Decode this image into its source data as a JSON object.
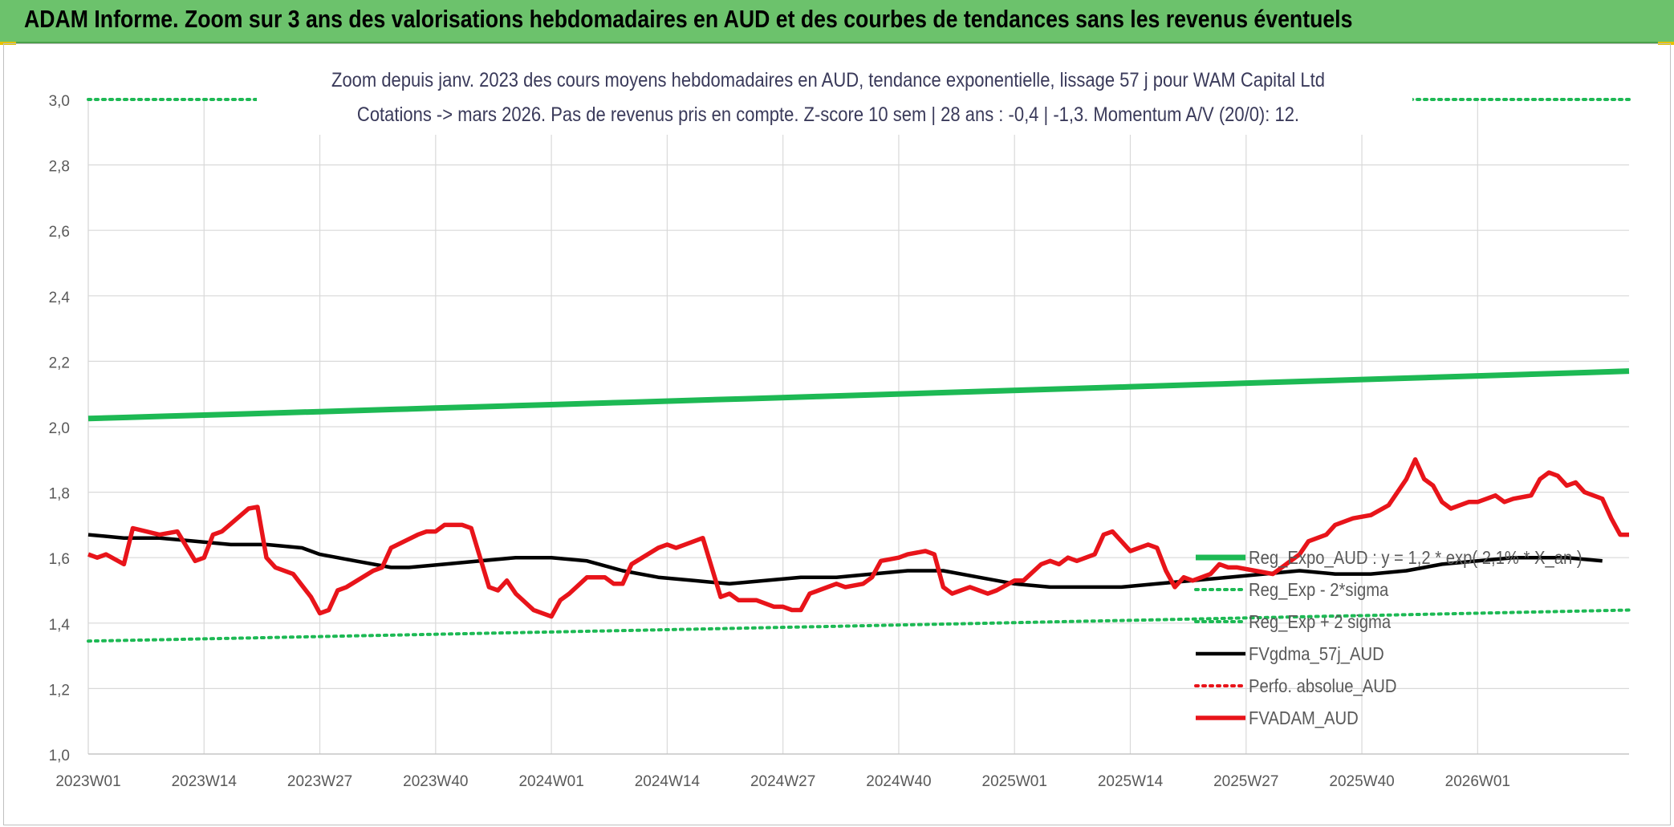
{
  "banner": {
    "title": "ADAM Informe. Zoom sur 3 ans des valorisations hebdomadaires en AUD et des courbes de tendances sans les revenus éventuels"
  },
  "chart_data": {
    "type": "line",
    "title_line1": "Zoom depuis janv. 2023 des cours moyens hebdomadaires en AUD, tendance exponentielle, lissage 57 j pour WAM Capital Ltd",
    "title_line2": "Cotations -> mars 2026. Pas de revenus pris en compte. Z-score 10 sem | 28 ans : -0,4 | -1,3. Momentum A/V (20/0): 12.",
    "ylim": [
      1.0,
      3.0
    ],
    "yticks": [
      "1,0",
      "1,2",
      "1,4",
      "1,6",
      "1,8",
      "2,0",
      "2,2",
      "2,4",
      "2,6",
      "2,8",
      "3,0"
    ],
    "x_tick_labels": [
      "2023W01",
      "2023W14",
      "2023W27",
      "2023W40",
      "2024W01",
      "2024W14",
      "2024W27",
      "2024W40",
      "2025W01",
      "2025W14",
      "2025W27",
      "2025W40",
      "2026W01"
    ],
    "grid": true,
    "legend_position": "bottom-right",
    "x_weeks": 171,
    "series": [
      {
        "name": "Reg_Expo_AUD : y = 1,2 * exp( 2,1% *  X_an )",
        "color": "#1db954",
        "style": "solid-thick",
        "start": 2.025,
        "end": 2.17
      },
      {
        "name": "Reg_Exp - 2*sigma",
        "color": "#1db954",
        "style": "dotted",
        "start": 3.0,
        "end": 3.0
      },
      {
        "name": "Reg_Exp + 2 sigma",
        "color": "#1db954",
        "style": "dotted",
        "start": 1.345,
        "end": 1.44
      },
      {
        "name": "FVgdma_57j_AUD",
        "color": "#000000",
        "style": "solid",
        "points": [
          [
            0,
            1.67
          ],
          [
            4,
            1.66
          ],
          [
            8,
            1.66
          ],
          [
            12,
            1.65
          ],
          [
            16,
            1.64
          ],
          [
            20,
            1.64
          ],
          [
            24,
            1.63
          ],
          [
            26,
            1.61
          ],
          [
            30,
            1.59
          ],
          [
            34,
            1.57
          ],
          [
            36,
            1.57
          ],
          [
            40,
            1.58
          ],
          [
            44,
            1.59
          ],
          [
            48,
            1.6
          ],
          [
            52,
            1.6
          ],
          [
            56,
            1.59
          ],
          [
            60,
            1.56
          ],
          [
            64,
            1.54
          ],
          [
            68,
            1.53
          ],
          [
            72,
            1.52
          ],
          [
            76,
            1.53
          ],
          [
            80,
            1.54
          ],
          [
            84,
            1.54
          ],
          [
            88,
            1.55
          ],
          [
            92,
            1.56
          ],
          [
            96,
            1.56
          ],
          [
            100,
            1.54
          ],
          [
            104,
            1.52
          ],
          [
            108,
            1.51
          ],
          [
            112,
            1.51
          ],
          [
            116,
            1.51
          ],
          [
            120,
            1.52
          ],
          [
            124,
            1.53
          ],
          [
            128,
            1.54
          ],
          [
            132,
            1.55
          ],
          [
            136,
            1.56
          ],
          [
            140,
            1.55
          ],
          [
            144,
            1.55
          ],
          [
            148,
            1.56
          ],
          [
            152,
            1.58
          ],
          [
            156,
            1.59
          ],
          [
            160,
            1.6
          ],
          [
            162,
            1.6
          ],
          [
            166,
            1.6
          ],
          [
            170,
            1.59
          ]
        ]
      },
      {
        "name": "Perfo. absolue_AUD",
        "color": "#e8141a",
        "style": "dotted",
        "points": []
      },
      {
        "name": "FVADAM_AUD",
        "color": "#e8141a",
        "style": "solid-thick",
        "points": [
          [
            0,
            1.61
          ],
          [
            1,
            1.6
          ],
          [
            2,
            1.61
          ],
          [
            4,
            1.58
          ],
          [
            5,
            1.69
          ],
          [
            8,
            1.67
          ],
          [
            10,
            1.68
          ],
          [
            12,
            1.59
          ],
          [
            13,
            1.6
          ],
          [
            14,
            1.67
          ],
          [
            15,
            1.68
          ],
          [
            18,
            1.75
          ],
          [
            19,
            1.755
          ],
          [
            20,
            1.6
          ],
          [
            21,
            1.57
          ],
          [
            23,
            1.55
          ],
          [
            25,
            1.48
          ],
          [
            26,
            1.43
          ],
          [
            27,
            1.44
          ],
          [
            28,
            1.5
          ],
          [
            29,
            1.51
          ],
          [
            32,
            1.56
          ],
          [
            33,
            1.57
          ],
          [
            34,
            1.63
          ],
          [
            37,
            1.67
          ],
          [
            38,
            1.68
          ],
          [
            39,
            1.68
          ],
          [
            40,
            1.7
          ],
          [
            42,
            1.7
          ],
          [
            43,
            1.69
          ],
          [
            45,
            1.51
          ],
          [
            46,
            1.5
          ],
          [
            47,
            1.53
          ],
          [
            48,
            1.49
          ],
          [
            50,
            1.44
          ],
          [
            51,
            1.43
          ],
          [
            52,
            1.42
          ],
          [
            53,
            1.47
          ],
          [
            54,
            1.49
          ],
          [
            56,
            1.54
          ],
          [
            58,
            1.54
          ],
          [
            59,
            1.52
          ],
          [
            60,
            1.52
          ],
          [
            61,
            1.58
          ],
          [
            64,
            1.63
          ],
          [
            65,
            1.64
          ],
          [
            66,
            1.63
          ],
          [
            67,
            1.64
          ],
          [
            69,
            1.66
          ],
          [
            71,
            1.48
          ],
          [
            72,
            1.49
          ],
          [
            73,
            1.47
          ],
          [
            75,
            1.47
          ],
          [
            77,
            1.45
          ],
          [
            78,
            1.45
          ],
          [
            79,
            1.44
          ],
          [
            80,
            1.44
          ],
          [
            81,
            1.49
          ],
          [
            82,
            1.5
          ],
          [
            84,
            1.52
          ],
          [
            85,
            1.51
          ],
          [
            87,
            1.52
          ],
          [
            88,
            1.54
          ],
          [
            89,
            1.59
          ],
          [
            91,
            1.6
          ],
          [
            92,
            1.61
          ],
          [
            94,
            1.62
          ],
          [
            95,
            1.61
          ],
          [
            96,
            1.51
          ],
          [
            97,
            1.49
          ],
          [
            98,
            1.5
          ],
          [
            99,
            1.51
          ],
          [
            100,
            1.5
          ],
          [
            101,
            1.49
          ],
          [
            102,
            1.5
          ],
          [
            104,
            1.53
          ],
          [
            105,
            1.53
          ],
          [
            107,
            1.58
          ],
          [
            108,
            1.59
          ],
          [
            109,
            1.58
          ],
          [
            110,
            1.6
          ],
          [
            111,
            1.59
          ],
          [
            112,
            1.6
          ],
          [
            113,
            1.61
          ],
          [
            114,
            1.67
          ],
          [
            115,
            1.68
          ],
          [
            117,
            1.62
          ],
          [
            119,
            1.64
          ],
          [
            120,
            1.63
          ],
          [
            121,
            1.56
          ],
          [
            122,
            1.51
          ],
          [
            123,
            1.54
          ],
          [
            124,
            1.53
          ],
          [
            126,
            1.55
          ],
          [
            127,
            1.58
          ],
          [
            128,
            1.57
          ],
          [
            129,
            1.57
          ],
          [
            131,
            1.56
          ],
          [
            133,
            1.55
          ],
          [
            134,
            1.57
          ],
          [
            136,
            1.61
          ],
          [
            137,
            1.65
          ],
          [
            139,
            1.67
          ],
          [
            140,
            1.7
          ],
          [
            142,
            1.72
          ],
          [
            144,
            1.73
          ],
          [
            146,
            1.76
          ],
          [
            148,
            1.84
          ],
          [
            149,
            1.9
          ],
          [
            150,
            1.84
          ],
          [
            151,
            1.82
          ],
          [
            152,
            1.77
          ],
          [
            153,
            1.75
          ],
          [
            155,
            1.77
          ],
          [
            156,
            1.77
          ],
          [
            157,
            1.78
          ],
          [
            158,
            1.79
          ],
          [
            159,
            1.77
          ],
          [
            160,
            1.78
          ],
          [
            162,
            1.79
          ],
          [
            163,
            1.84
          ],
          [
            164,
            1.86
          ],
          [
            165,
            1.85
          ],
          [
            166,
            1.82
          ],
          [
            167,
            1.83
          ],
          [
            168,
            1.8
          ],
          [
            169,
            1.79
          ],
          [
            170,
            1.78
          ],
          [
            171,
            1.72
          ],
          [
            172,
            1.67
          ],
          [
            173,
            1.67
          ]
        ]
      }
    ]
  }
}
